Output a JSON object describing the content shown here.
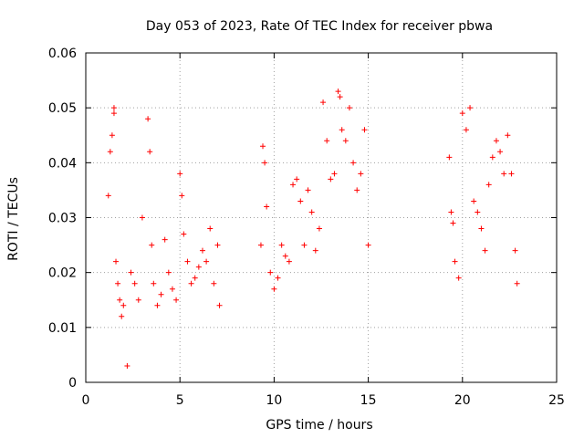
{
  "chart_data": {
    "type": "scatter",
    "title": "Day 053 of 2023, Rate Of TEC Index for receiver pbwa",
    "xlabel": "GPS time / hours",
    "ylabel": "ROTI / TECUs",
    "xlim": [
      0,
      25
    ],
    "ylim": [
      0,
      0.06
    ],
    "x_ticks": [
      "0",
      "5",
      "10",
      "15",
      "20",
      "25"
    ],
    "y_ticks": [
      "0",
      "0.01",
      "0.02",
      "0.03",
      "0.04",
      "0.05",
      "0.06"
    ],
    "grid": true,
    "marker": "+",
    "color": "#ff0000",
    "series": [
      {
        "x": [
          1.2,
          1.3,
          1.4,
          1.5,
          1.5,
          1.6,
          1.7,
          1.8,
          1.9,
          2.0,
          2.2,
          2.4,
          2.6,
          2.8,
          3.0,
          3.3,
          3.4,
          3.5,
          3.6,
          3.8,
          4.0,
          4.2,
          4.4,
          4.6,
          4.8,
          5.0,
          5.1,
          5.2,
          5.4,
          5.6,
          5.8,
          6.0,
          6.2,
          6.4,
          6.6,
          6.8,
          7.0,
          7.1,
          9.3,
          9.4,
          9.5,
          9.6,
          9.8,
          10.0,
          10.2,
          10.4,
          10.6,
          10.8,
          11.0,
          11.2,
          11.4,
          11.6,
          11.8,
          12.0,
          12.2,
          12.4,
          12.6,
          12.8,
          13.0,
          13.2,
          13.4,
          13.5,
          13.6,
          13.8,
          14.0,
          14.2,
          14.4,
          14.6,
          14.8,
          15.0,
          19.3,
          19.4,
          19.5,
          19.6,
          19.8,
          20.0,
          20.2,
          20.4,
          20.6,
          20.8,
          21.0,
          21.2,
          21.4,
          21.6,
          21.8,
          22.0,
          22.2,
          22.4,
          22.6,
          22.8,
          22.9
        ],
        "y": [
          0.034,
          0.042,
          0.045,
          0.05,
          0.049,
          0.022,
          0.018,
          0.015,
          0.012,
          0.014,
          0.003,
          0.02,
          0.018,
          0.015,
          0.03,
          0.048,
          0.042,
          0.025,
          0.018,
          0.014,
          0.016,
          0.026,
          0.02,
          0.017,
          0.015,
          0.038,
          0.034,
          0.027,
          0.022,
          0.018,
          0.019,
          0.021,
          0.024,
          0.022,
          0.028,
          0.018,
          0.025,
          0.014,
          0.025,
          0.043,
          0.04,
          0.032,
          0.02,
          0.017,
          0.019,
          0.025,
          0.023,
          0.022,
          0.036,
          0.037,
          0.033,
          0.025,
          0.035,
          0.031,
          0.024,
          0.028,
          0.051,
          0.044,
          0.037,
          0.038,
          0.053,
          0.052,
          0.046,
          0.044,
          0.05,
          0.04,
          0.035,
          0.038,
          0.046,
          0.025,
          0.041,
          0.031,
          0.029,
          0.022,
          0.019,
          0.049,
          0.046,
          0.05,
          0.033,
          0.031,
          0.028,
          0.024,
          0.036,
          0.041,
          0.044,
          0.042,
          0.038,
          0.045,
          0.038,
          0.024,
          0.018
        ]
      }
    ]
  }
}
